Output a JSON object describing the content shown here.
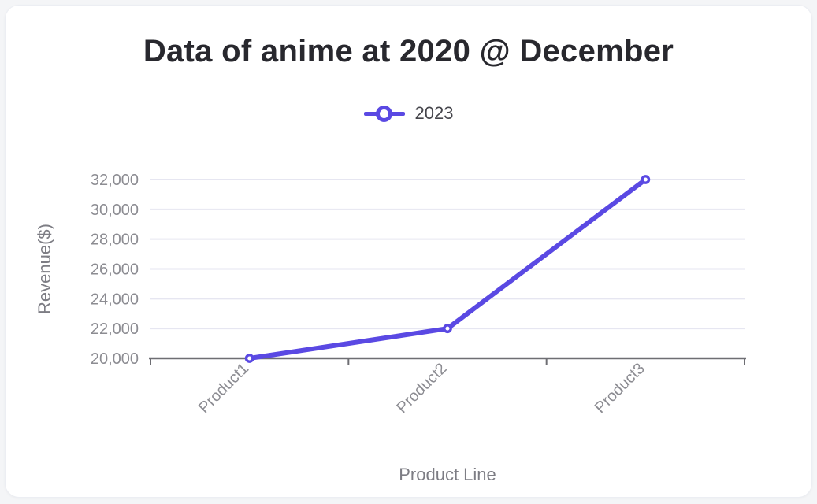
{
  "page": {
    "background": "#f4f5f7",
    "card_background": "#ffffff"
  },
  "chart_data": {
    "type": "line",
    "title": "Data of anime at 2020 @ December",
    "categories": [
      "Product1",
      "Product2",
      "Product3"
    ],
    "series": [
      {
        "name": "2023",
        "color": "#5a49e3",
        "values": [
          20000,
          22000,
          32000
        ]
      }
    ],
    "xlabel": "Product Line",
    "ylabel": "Revenue($)",
    "ylim": [
      20000,
      32000
    ],
    "ytick_interval": 2000,
    "ytick_labels": [
      "20,000",
      "22,000",
      "24,000",
      "26,000",
      "28,000",
      "30,000",
      "32,000"
    ],
    "grid": true,
    "legend_position": "top",
    "x_tick_rotation": -45,
    "marker": "open-circle"
  },
  "colors": {
    "accent": "#5a49e3",
    "title_text": "#28282e",
    "legend_text": "#45454b",
    "tick_label": "#8c8c92",
    "axis_title": "#7d7d84",
    "grid_line": "#e6e6f1",
    "axis_line": "#6e6e73",
    "marker_fill": "#ffffff"
  }
}
